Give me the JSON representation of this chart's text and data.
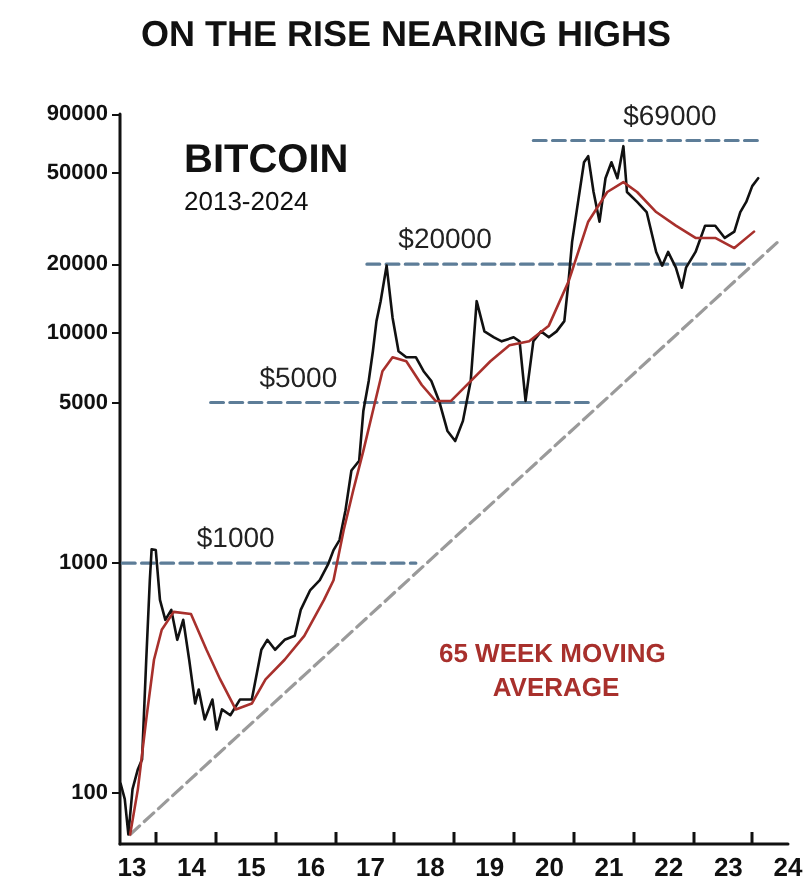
{
  "chart_data": {
    "type": "line",
    "title": "ON THE RISE NEARING HIGHS",
    "annotations": [
      "BITCOIN",
      "2013-2024",
      {
        "text": "$1000",
        "x": 2014.74,
        "y": 1000
      },
      {
        "text": "$5000",
        "x": 2015.79,
        "y": 5000
      },
      {
        "text": "$20000",
        "x": 2018.25,
        "y": 20000
      },
      {
        "text": "$69000",
        "x": 2022.02,
        "y": 69000
      }
    ],
    "log": "y",
    "grid": false,
    "marker": "none",
    "xlim": [
      2012.8,
      2024.0
    ],
    "xticks": [
      {
        "value": 2013.4,
        "label": null
      },
      {
        "value": 2014.4,
        "label": null
      },
      {
        "value": 2015.4,
        "label": null
      },
      {
        "value": 2016.4,
        "label": null
      },
      {
        "value": 2017.4,
        "label": null
      },
      {
        "value": 2018.4,
        "label": null
      },
      {
        "value": 2019.4,
        "label": null
      },
      {
        "value": 2020.4,
        "label": null
      },
      {
        "value": 2021.4,
        "label": null
      },
      {
        "value": 2022.4,
        "label": null
      },
      {
        "value": 2023.4,
        "label": null
      },
      {
        "value": 2013,
        "label": "13"
      },
      {
        "value": 2014,
        "label": "14"
      },
      {
        "value": 2015,
        "label": "15"
      },
      {
        "value": 2016,
        "label": "16"
      },
      {
        "value": 2017,
        "label": "17"
      },
      {
        "value": 2018,
        "label": "18"
      },
      {
        "value": 2019,
        "label": "19"
      },
      {
        "value": 2020,
        "label": "20"
      },
      {
        "value": 2021,
        "label": "21"
      },
      {
        "value": 2022,
        "label": "22"
      },
      {
        "value": 2023,
        "label": "23"
      },
      {
        "value": 2024,
        "label": "24"
      }
    ],
    "ylim": [
      60,
      90000
    ],
    "yticks": [
      100,
      1000,
      5000,
      10000,
      20000,
      50000,
      90000
    ],
    "series": [
      {
        "color": "#5d7d98",
        "line_style": "dashed",
        "x": [
          2012.84,
          2017.76
        ],
        "values": [
          1000,
          1000
        ]
      },
      {
        "color": "#5d7d98",
        "line_style": "dashed",
        "x": [
          2014.32,
          2020.74
        ],
        "values": [
          5000,
          5000
        ]
      },
      {
        "color": "#5d7d98",
        "line_style": "dashed",
        "x": [
          2016.94,
          2023.37
        ],
        "values": [
          20000,
          20000
        ]
      },
      {
        "color": "#5d7d98",
        "line_style": "dashed",
        "x": [
          2019.73,
          2023.5
        ],
        "values": [
          69000,
          69000
        ]
      },
      {
        "color": "#9a9a9a",
        "line_style": "dashed",
        "x": [
          2012.97,
          2023.83
        ],
        "values": [
          66,
          25000
        ]
      },
      {
        "color": "#111111",
        "line_style": "solid",
        "x": [
          2012.81,
          2012.88,
          2012.94,
          2013.01,
          2013.1,
          2013.17,
          2013.24,
          2013.3,
          2013.33,
          2013.4,
          2013.47,
          2013.56,
          2013.66,
          2013.76,
          2013.86,
          2013.96,
          2014.06,
          2014.12,
          2014.22,
          2014.35,
          2014.42,
          2014.51,
          2014.65,
          2014.81,
          2015.01,
          2015.17,
          2015.27,
          2015.4,
          2015.56,
          2015.73,
          2015.83,
          2015.99,
          2016.15,
          2016.29,
          2016.38,
          2016.48,
          2016.58,
          2016.68,
          2016.81,
          2016.88,
          2016.97,
          2017.04,
          2017.1,
          2017.17,
          2017.27,
          2017.37,
          2017.47,
          2017.6,
          2017.76,
          2017.89,
          2018.02,
          2018.15,
          2018.29,
          2018.42,
          2018.55,
          2018.68,
          2018.78,
          2018.91,
          2019.07,
          2019.2,
          2019.4,
          2019.5,
          2019.6,
          2019.73,
          2019.86,
          2019.99,
          2020.12,
          2020.25,
          2020.32,
          2020.38,
          2020.48,
          2020.58,
          2020.65,
          2020.74,
          2020.84,
          2020.94,
          2021.04,
          2021.14,
          2021.24,
          2021.3,
          2021.47,
          2021.63,
          2021.79,
          2021.89,
          2021.99,
          2022.12,
          2022.22,
          2022.29,
          2022.45,
          2022.61,
          2022.78,
          2022.94,
          2023.1,
          2023.2,
          2023.3,
          2023.4,
          2023.5
        ],
        "values": [
          110,
          94,
          66,
          104,
          127,
          140,
          380,
          843,
          1150,
          1140,
          692,
          567,
          626,
          464,
          567,
          380,
          245,
          282,
          209,
          255,
          189,
          231,
          218,
          255,
          255,
          420,
          464,
          420,
          464,
          483,
          626,
          764,
          843,
          990,
          1140,
          1260,
          1695,
          2530,
          2790,
          4590,
          6200,
          8360,
          11300,
          13800,
          19700,
          11700,
          8360,
          7870,
          7870,
          6840,
          6200,
          5080,
          3760,
          3400,
          4160,
          6200,
          13800,
          10200,
          9610,
          9230,
          9610,
          9230,
          5080,
          9230,
          10200,
          9610,
          10200,
          11300,
          16800,
          25000,
          37300,
          55500,
          59000,
          41200,
          30600,
          47300,
          55500,
          47300,
          65200,
          41200,
          37300,
          33700,
          22600,
          19700,
          22600,
          19300,
          15800,
          19300,
          22600,
          29400,
          29400,
          26000,
          27700,
          33700,
          37300,
          43700,
          47300
        ]
      },
      {
        "name": "65 WEEK MOVING AVERAGE",
        "color": "#a8302c",
        "line_style": "solid",
        "x": [
          2012.97,
          2013.1,
          2013.24,
          2013.37,
          2013.5,
          2013.7,
          2013.99,
          2014.25,
          2014.48,
          2014.74,
          2015.01,
          2015.24,
          2015.56,
          2015.89,
          2016.22,
          2016.38,
          2016.55,
          2016.71,
          2016.88,
          2017.04,
          2017.2,
          2017.37,
          2017.6,
          2017.86,
          2018.09,
          2018.35,
          2018.68,
          2019.01,
          2019.33,
          2019.66,
          2019.99,
          2020.32,
          2020.65,
          2020.97,
          2021.24,
          2021.47,
          2021.79,
          2022.12,
          2022.45,
          2022.78,
          2023.1,
          2023.43
        ],
        "values": [
          66,
          104,
          209,
          380,
          513,
          614,
          601,
          420,
          312,
          231,
          245,
          312,
          380,
          483,
          692,
          843,
          1390,
          2070,
          3080,
          4590,
          6840,
          7870,
          7560,
          5960,
          5080,
          5080,
          6200,
          7560,
          8880,
          9230,
          10800,
          16800,
          30600,
          41200,
          45500,
          41200,
          33700,
          29400,
          26000,
          26000,
          23500,
          27700
        ]
      }
    ]
  }
}
